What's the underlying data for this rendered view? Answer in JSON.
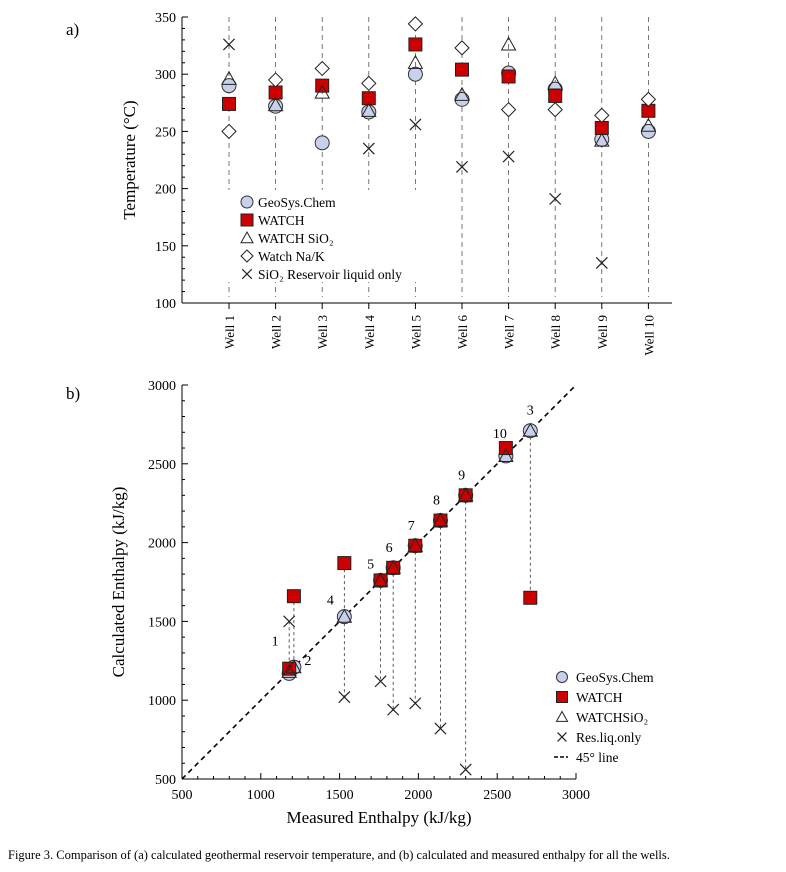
{
  "panel_labels": [
    "a)",
    "b)"
  ],
  "caption": "Figure 3. Comparison of (a) calculated geothermal reservoir temperature, and (b) calculated and measured enthalpy for all the wells.",
  "colors": {
    "geosys": "#c8d0ec",
    "watch": "#cc0000",
    "ink": "#000000"
  },
  "chart_data": [
    {
      "type": "scatter",
      "ylabel": "Temperature (°C)",
      "ylim": [
        100,
        350
      ],
      "yticks": [
        100,
        150,
        200,
        250,
        300,
        350
      ],
      "grid": false,
      "legend_placement": "bottom-left",
      "categories": [
        "Well 1",
        "Well 2",
        "Well 3",
        "Well 4",
        "Well 5",
        "Well 6",
        "Well 7",
        "Well 8",
        "Well 9",
        "Well 10"
      ],
      "series": [
        {
          "name": "GeoSys.Chem",
          "marker": "circle",
          "values": [
            290,
            272,
            240,
            267,
            300,
            278,
            301,
            287,
            243,
            250
          ]
        },
        {
          "name": "WATCH",
          "marker": "square",
          "values": [
            274,
            284,
            290,
            279,
            326,
            304,
            298,
            281,
            253,
            268
          ]
        },
        {
          "name": "WATCH SiO₂",
          "marker": "triangle",
          "values": [
            296,
            273,
            284,
            268,
            310,
            282,
            326,
            292,
            242,
            255
          ]
        },
        {
          "name": "Watch Na/K",
          "marker": "diamond",
          "values": [
            250,
            295,
            305,
            292,
            344,
            323,
            269,
            269,
            264,
            278
          ]
        },
        {
          "name": "SiO₂ Reservoir liquid only",
          "marker": "x",
          "values": [
            326,
            null,
            null,
            235,
            256,
            219,
            228,
            191,
            135,
            null
          ]
        }
      ]
    },
    {
      "type": "scatter",
      "xlabel": "Measured Enthalpy (kJ/kg)",
      "ylabel": "Calculated Enthalpy (kJ/kg)",
      "xlim": [
        500,
        3000
      ],
      "ylim": [
        500,
        3000
      ],
      "xticks": [
        500,
        1000,
        1500,
        2000,
        2500,
        3000
      ],
      "yticks": [
        500,
        1000,
        1500,
        2000,
        2500,
        3000
      ],
      "grid": false,
      "legend_placement": "bottom-right",
      "point_labels": [
        "1",
        "2",
        "4",
        "5",
        "6",
        "7",
        "8",
        "9",
        "10",
        "3"
      ],
      "measured": [
        1180,
        1210,
        1530,
        1760,
        1840,
        1980,
        2140,
        2300,
        2555,
        2710
      ],
      "series": [
        {
          "name": "GeoSys.Chem",
          "marker": "circle",
          "values": [
            1170,
            1210,
            1530,
            1760,
            1840,
            1980,
            2140,
            2300,
            2550,
            2710
          ]
        },
        {
          "name": "WATCH",
          "marker": "square",
          "values": [
            1200,
            1660,
            1870,
            1760,
            1840,
            1980,
            2140,
            2300,
            2600,
            1650
          ]
        },
        {
          "name": "WATCHSiO₂",
          "marker": "triangle",
          "values": [
            1180,
            1210,
            1530,
            1760,
            1840,
            1980,
            2140,
            2300,
            2550,
            2710
          ]
        },
        {
          "name": "Res.liq.only",
          "marker": "x",
          "values": [
            1500,
            null,
            1020,
            1120,
            940,
            980,
            820,
            560,
            null,
            null
          ]
        },
        {
          "name": "45° line",
          "marker": "dashed-line"
        }
      ]
    }
  ]
}
